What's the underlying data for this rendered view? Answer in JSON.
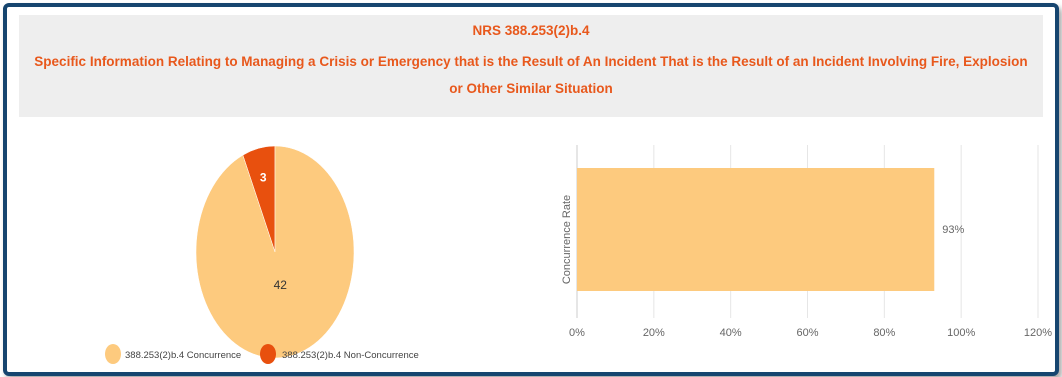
{
  "header": {
    "code": "NRS 388.253(2)b.4",
    "title": "Specific Information Relating to Managing a Crisis or Emergency that is the Result of An Incident That is the Result of an Incident Involving Fire, Explosion or Other Similar Situation"
  },
  "colors": {
    "concurrence": "#fdca7e",
    "non_concurrence": "#e8500e",
    "title": "#e8581c",
    "frame": "#16456f"
  },
  "chart_data": [
    {
      "type": "pie",
      "categories": [
        "388.253(2)b.4 Concurrence",
        "388.253(2)b.4 Non-Concurrence"
      ],
      "values": [
        42,
        3
      ],
      "data_labels": [
        "42",
        "3"
      ],
      "legend_position": "bottom",
      "title": ""
    },
    {
      "type": "bar",
      "orientation": "horizontal",
      "categories": [
        ""
      ],
      "values": [
        93
      ],
      "data_labels": [
        "93%"
      ],
      "xlim": [
        0,
        120
      ],
      "xticks": [
        "0%",
        "20%",
        "40%",
        "60%",
        "80%",
        "100%",
        "120%"
      ],
      "ylabel": "Concurrence Rate",
      "xlabel": "",
      "grid": true,
      "title": ""
    }
  ]
}
